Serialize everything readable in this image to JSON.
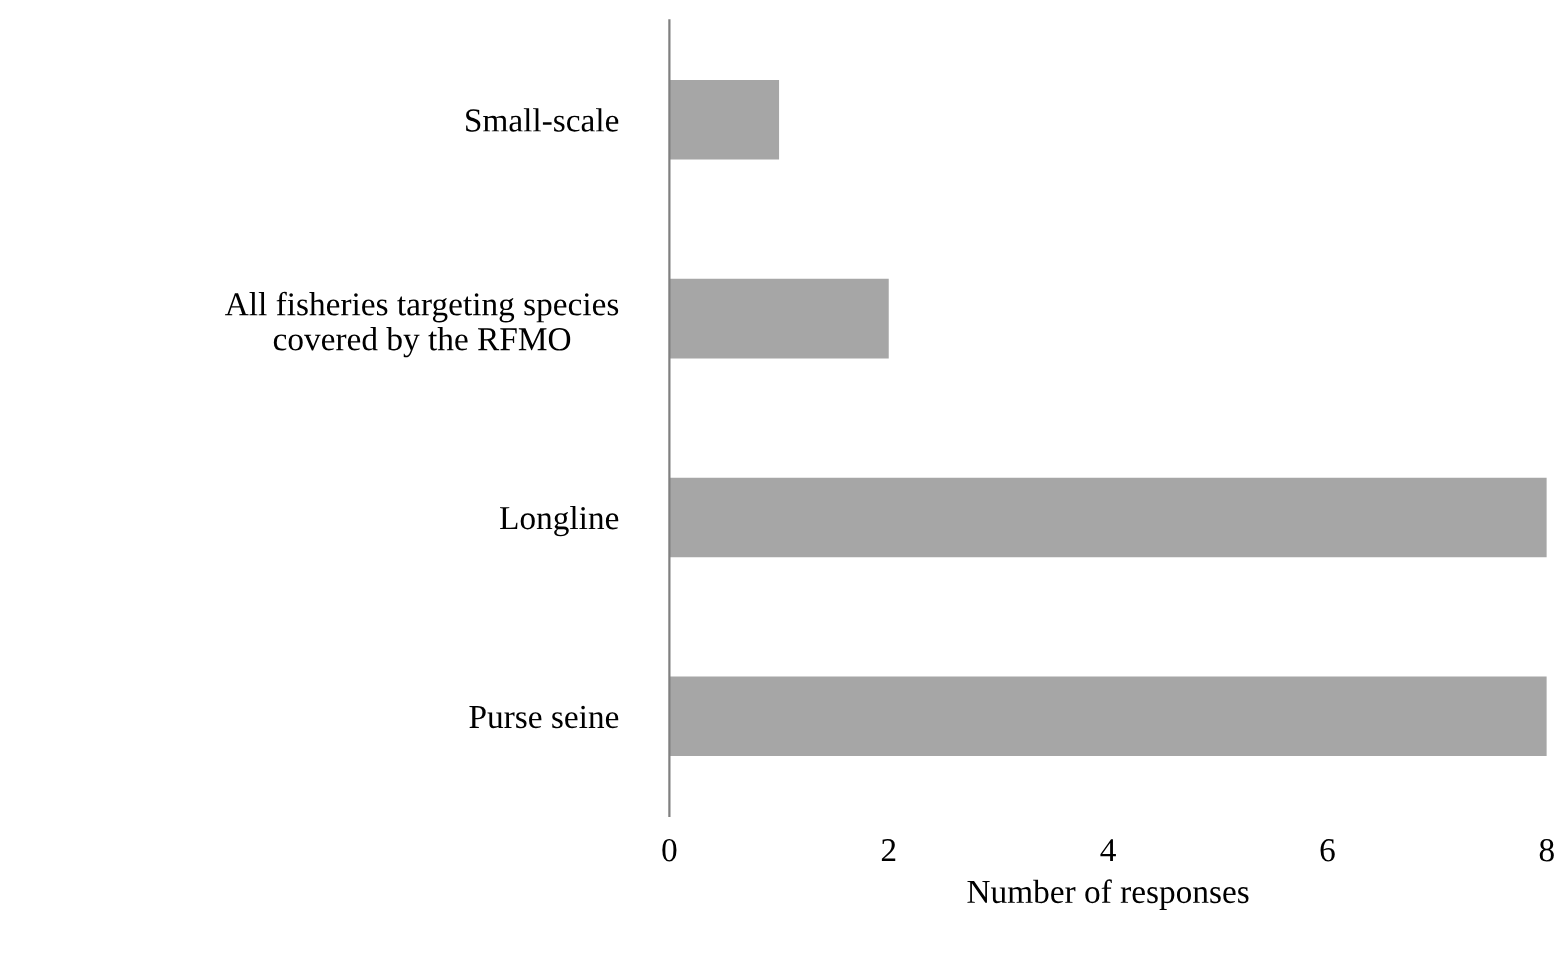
{
  "chart_data": {
    "type": "bar",
    "orientation": "horizontal",
    "xlabel": "Number of responses",
    "categories": [
      "Small-scale",
      "All fisheries targeting species\ncovered by the RFMO",
      "Longline",
      "Purse seine"
    ],
    "values": [
      1,
      2,
      8,
      8
    ],
    "color": "#a6a6a6",
    "xlim": [
      0,
      8
    ],
    "xticks": [
      0,
      2,
      4,
      6,
      8
    ],
    "grid": false,
    "legend": false
  }
}
